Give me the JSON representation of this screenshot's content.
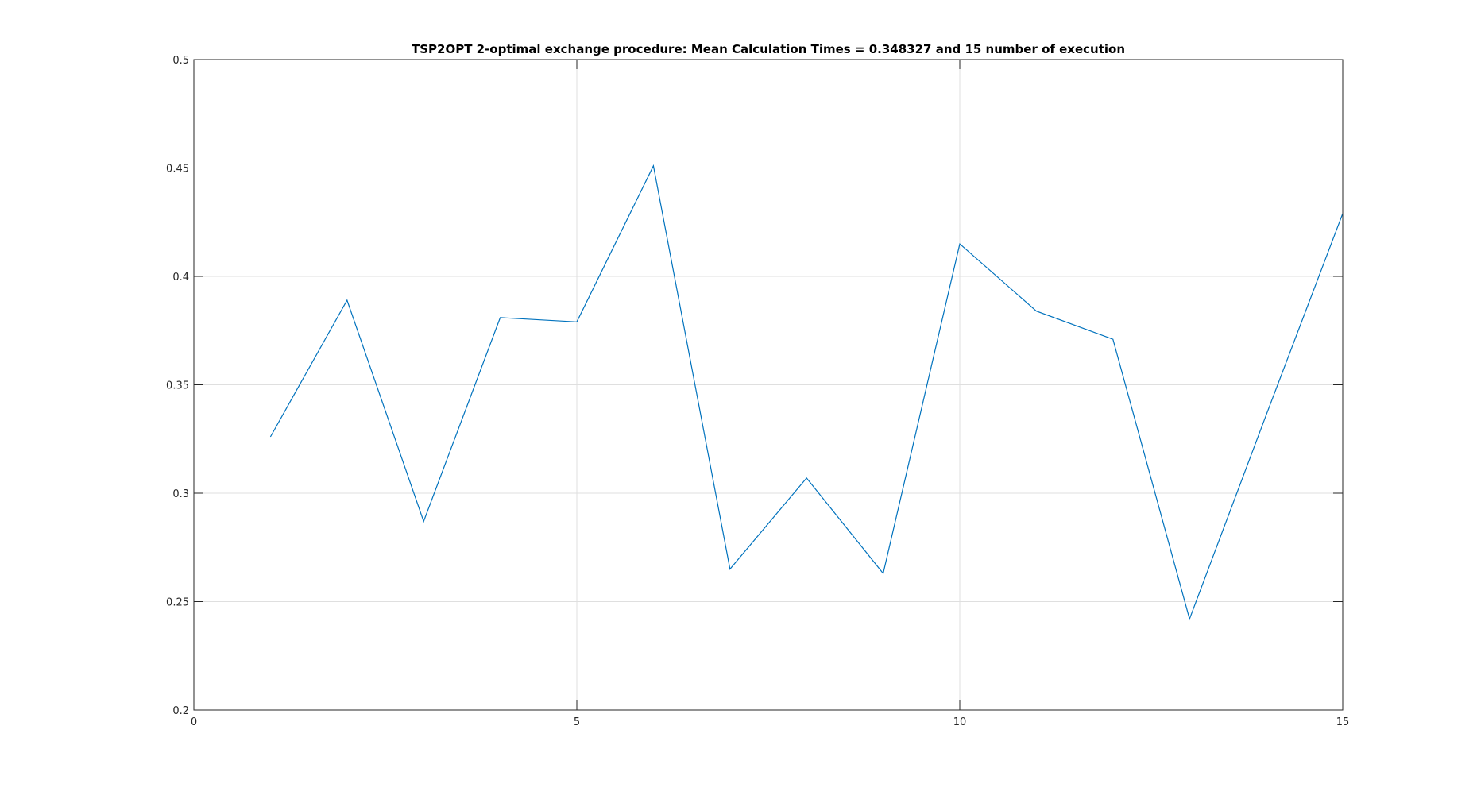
{
  "chart_data": {
    "type": "line",
    "title": "TSP2OPT 2-optimal exchange procedure: Mean Calculation Times = 0.348327 and 15 number of execution",
    "xlabel": "",
    "ylabel": "",
    "xlim": [
      0,
      15
    ],
    "ylim": [
      0.2,
      0.5
    ],
    "xticks": [
      0,
      5,
      10,
      15
    ],
    "xtick_labels": [
      "0",
      "5",
      "10",
      "15"
    ],
    "yticks": [
      0.2,
      0.25,
      0.3,
      0.35,
      0.4,
      0.45,
      0.5
    ],
    "ytick_labels": [
      "0.2",
      "0.25",
      "0.3",
      "0.35",
      "0.4",
      "0.45",
      "0.5"
    ],
    "grid": true,
    "series": [
      {
        "color": "#0072bd",
        "x": [
          1,
          2,
          3,
          4,
          5,
          6,
          7,
          8,
          9,
          10,
          11,
          12,
          13,
          14,
          15
        ],
        "y": [
          0.326,
          0.389,
          0.287,
          0.381,
          0.379,
          0.451,
          0.265,
          0.307,
          0.263,
          0.415,
          0.384,
          0.371,
          0.242,
          0.336,
          0.429
        ]
      }
    ]
  }
}
